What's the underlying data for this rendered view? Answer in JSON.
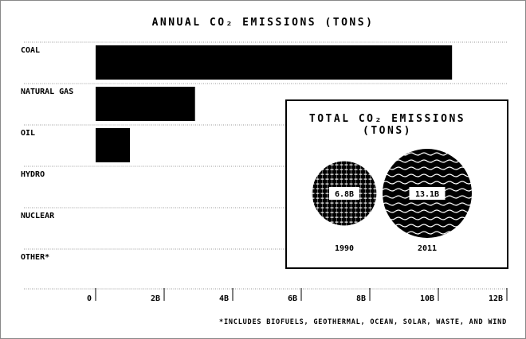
{
  "chart_data": [
    {
      "type": "bar",
      "orientation": "horizontal",
      "title": "ANNUAL CO₂ EMISSIONS (TONS)",
      "categories": [
        "COAL",
        "NATURAL GAS",
        "OIL",
        "HYDRO",
        "NUCLEAR",
        "OTHER*"
      ],
      "values": [
        10.4,
        2.9,
        1.0,
        0,
        0,
        0
      ],
      "unit": "billion tons",
      "xlim": [
        0,
        12
      ],
      "xticks": [
        "0",
        "2B",
        "4B",
        "6B",
        "8B",
        "10B",
        "12B"
      ],
      "grid": true,
      "bar_color": "#000000",
      "footnote": "*INCLUDES BIOFUELS, GEOTHERMAL, OCEAN, SOLAR, WASTE, AND WIND"
    },
    {
      "type": "bubble",
      "title_line1": "TOTAL CO₂ EMISSIONS",
      "title_line2": "(TONS)",
      "items": [
        {
          "year": "1990",
          "value": 6.8,
          "label": "6.8B",
          "pattern": "grid"
        },
        {
          "year": "2011",
          "value": 13.1,
          "label": "13.1B",
          "pattern": "waves"
        }
      ]
    }
  ]
}
